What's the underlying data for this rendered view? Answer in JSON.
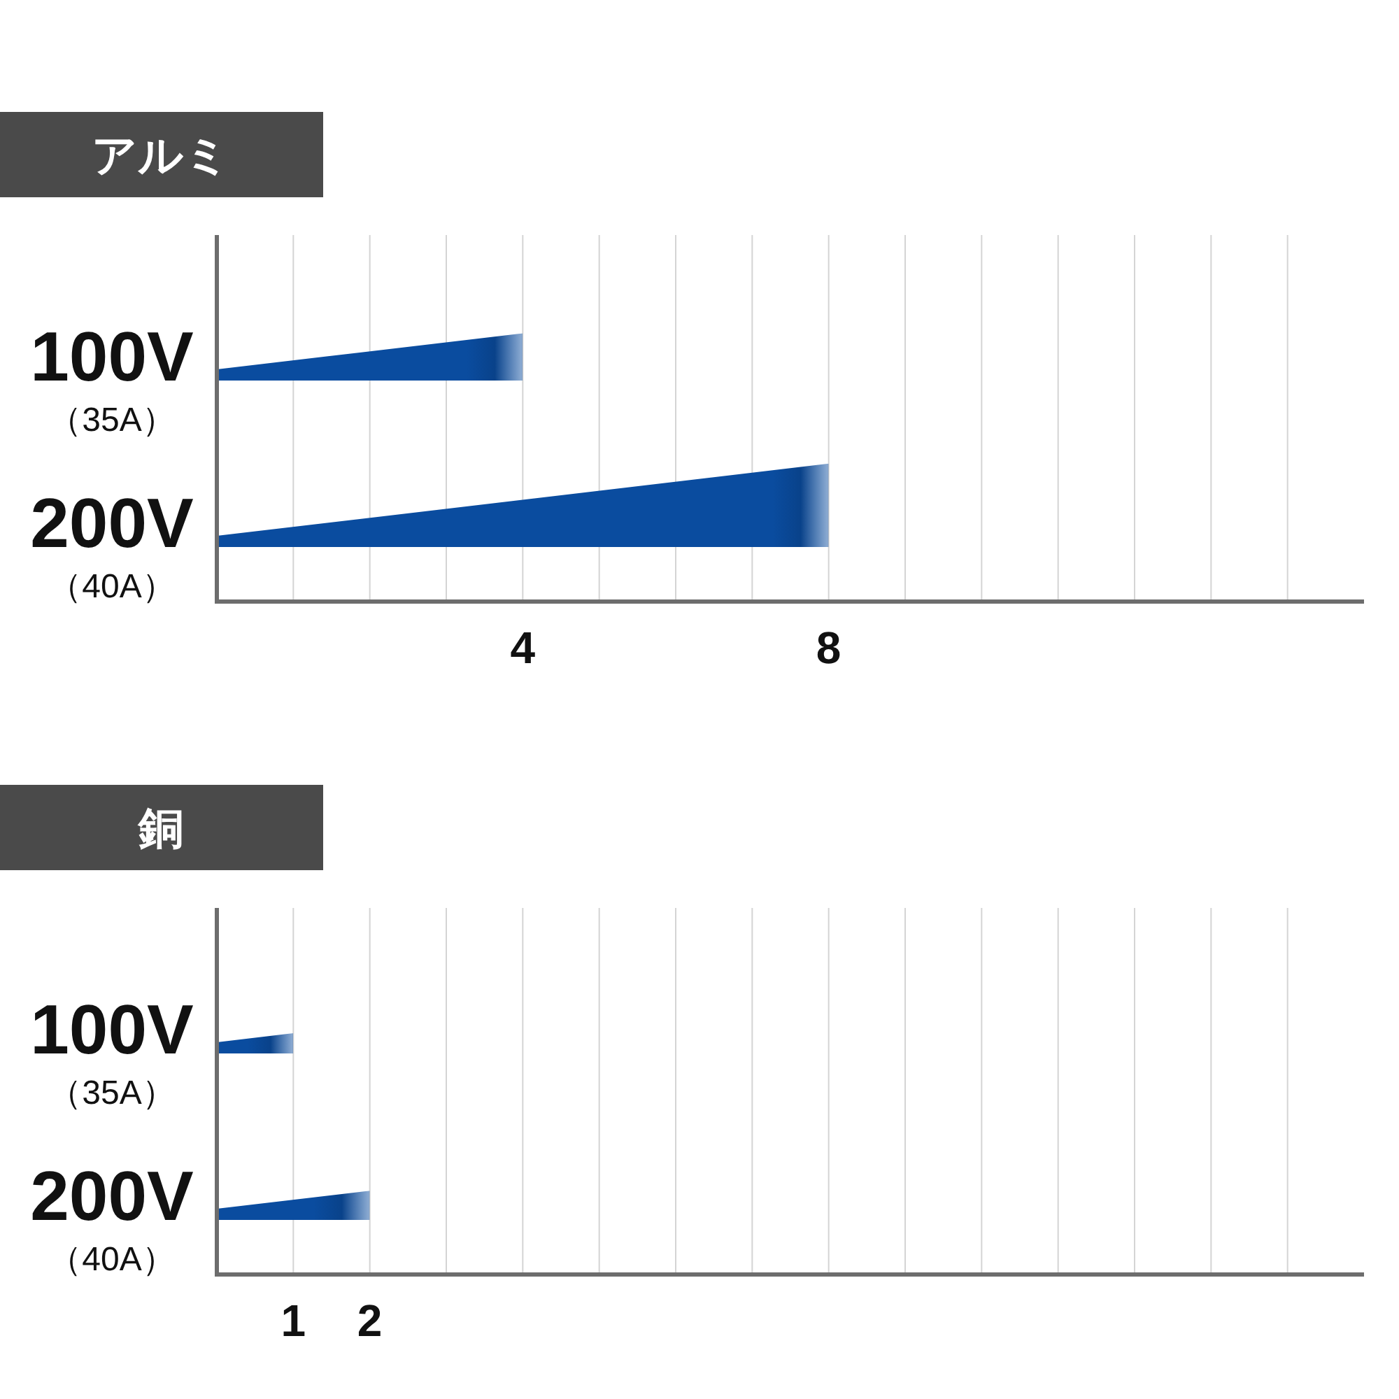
{
  "chart_data": [
    {
      "type": "bar",
      "title": "アルミ",
      "orientation": "horizontal",
      "categories": [
        "100V\n（35A）",
        "200V\n（40A）"
      ],
      "values": [
        4,
        8
      ],
      "color": "#0a4c9f",
      "xlim": [
        0,
        15
      ],
      "xticks": [
        {
          "value": 1,
          "label": null
        },
        {
          "value": 2,
          "label": null
        },
        {
          "value": 3,
          "label": null
        },
        4,
        {
          "value": 5,
          "label": null
        },
        {
          "value": 6,
          "label": null
        },
        {
          "value": 7,
          "label": null
        },
        8,
        {
          "value": 9,
          "label": null
        },
        {
          "value": 10,
          "label": null
        },
        {
          "value": 11,
          "label": null
        },
        {
          "value": 12,
          "label": null
        },
        {
          "value": 13,
          "label": null
        },
        {
          "value": 14,
          "label": null
        }
      ],
      "grid": "x"
    },
    {
      "type": "bar",
      "title": "銅",
      "orientation": "horizontal",
      "categories": [
        "100V\n（35A）",
        "200V\n（40A）"
      ],
      "values": [
        1,
        2
      ],
      "color": "#0a4c9f",
      "xlim": [
        0,
        15
      ],
      "xticks": [
        1,
        2,
        {
          "value": 3,
          "label": null
        },
        {
          "value": 4,
          "label": null
        },
        {
          "value": 5,
          "label": null
        },
        {
          "value": 6,
          "label": null
        },
        {
          "value": 7,
          "label": null
        },
        {
          "value": 8,
          "label": null
        },
        {
          "value": 9,
          "label": null
        },
        {
          "value": 10,
          "label": null
        },
        {
          "value": 11,
          "label": null
        },
        {
          "value": 12,
          "label": null
        },
        {
          "value": 13,
          "label": null
        },
        {
          "value": 14,
          "label": null
        }
      ],
      "grid": "x"
    }
  ]
}
